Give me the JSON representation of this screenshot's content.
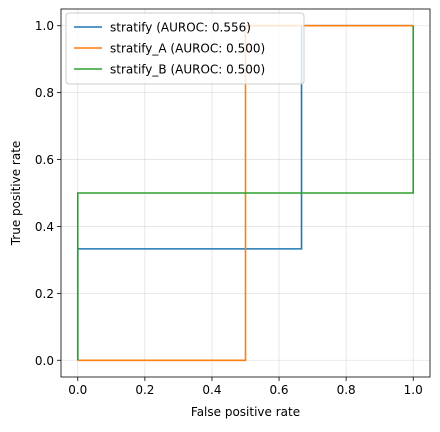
{
  "chart_data": {
    "type": "line",
    "step": true,
    "title": "",
    "xlabel": "False positive rate",
    "ylabel": "True positive rate",
    "xlim": [
      -0.05,
      1.05
    ],
    "ylim": [
      -0.05,
      1.05
    ],
    "xticks": [
      0.0,
      0.2,
      0.4,
      0.6,
      0.8,
      1.0
    ],
    "yticks": [
      0.0,
      0.2,
      0.4,
      0.6,
      0.8,
      1.0
    ],
    "xtick_labels": [
      "0.0",
      "0.2",
      "0.4",
      "0.6",
      "0.8",
      "1.0"
    ],
    "ytick_labels": [
      "0.0",
      "0.2",
      "0.4",
      "0.6",
      "0.8",
      "1.0"
    ],
    "grid": true,
    "legend_position": "top-left",
    "series": [
      {
        "name": "stratify (AUROC: 0.556)",
        "color": "#1f77b4",
        "x": [
          0.0,
          0.0,
          0.667,
          0.667,
          1.0
        ],
        "y": [
          0.0,
          0.333,
          0.333,
          1.0,
          1.0
        ]
      },
      {
        "name": "stratify_A (AUROC: 0.500)",
        "color": "#ff7f0e",
        "x": [
          0.0,
          0.0,
          0.5,
          0.5,
          1.0
        ],
        "y": [
          0.0,
          0.0,
          0.0,
          1.0,
          1.0
        ]
      },
      {
        "name": "stratify_B (AUROC: 0.500)",
        "color": "#2ca02c",
        "x": [
          0.0,
          0.0,
          1.0,
          1.0
        ],
        "y": [
          0.0,
          0.5,
          0.5,
          1.0
        ]
      }
    ]
  }
}
